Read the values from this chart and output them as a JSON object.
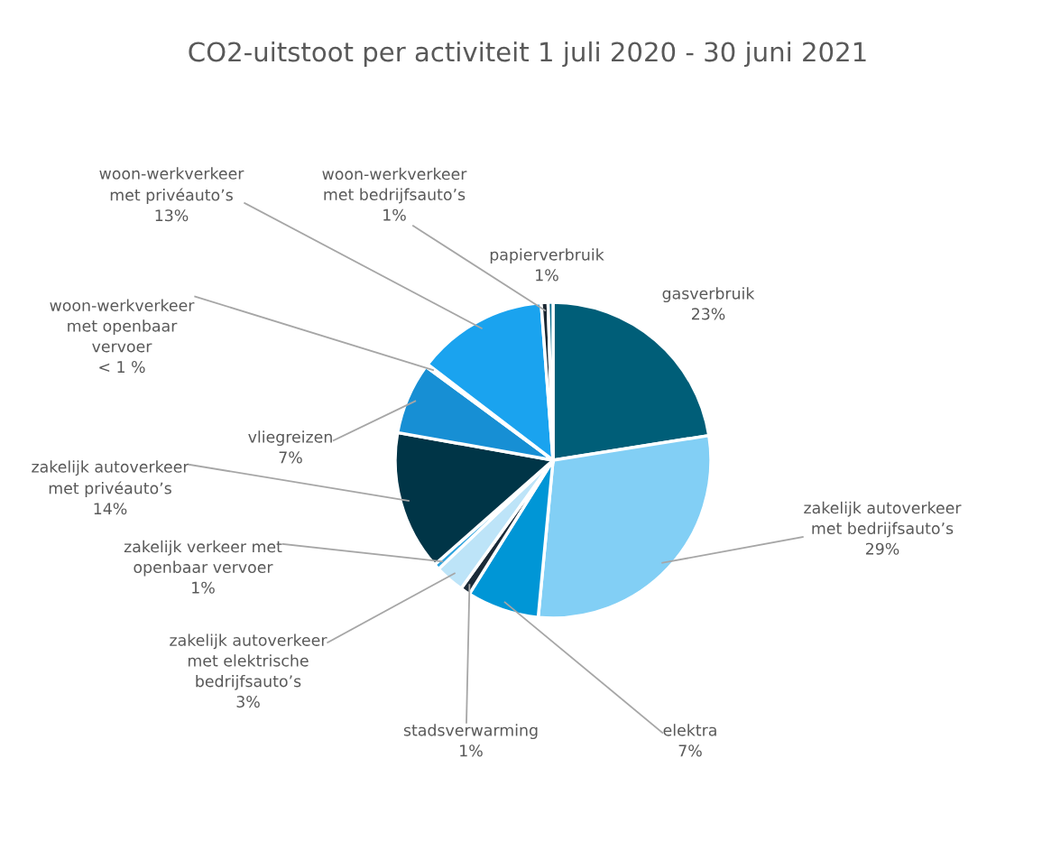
{
  "chart_data": {
    "type": "pie",
    "title": "CO2-uitstoot per activiteit 1 juli 2020 - 30 juni 2021",
    "categories": [
      "gasverbruik",
      "zakelijk autoverkeer met bedrijfsauto’s",
      "elektra",
      "stadsverwarming",
      "zakelijk autoverkeer met elektrische bedrijfsauto’s",
      "zakelijk verkeer met openbaar vervoer",
      "zakelijk autoverkeer met privéauto’s",
      "vliegreizen",
      "woon-werkverkeer met openbaar vervoer",
      "woon-werkverkeer met privéauto’s",
      "woon-werkverkeer met bedrijfsauto’s",
      "papierverbruik"
    ],
    "values": [
      22.5,
      29,
      7.4,
      1,
      3,
      0.6,
      14.3,
      7.3,
      0.3,
      13.4,
      0.7,
      0.5
    ],
    "value_labels": [
      "23%",
      "29%",
      "7%",
      "1%",
      "3%",
      "1%",
      "14%",
      "7%",
      "< 1 %",
      "13%",
      "1%",
      "1%"
    ],
    "colors": [
      "#005e78",
      "#82cff5",
      "#0096d6",
      "#1b2b38",
      "#bde4f8",
      "#2ea3de",
      "#003547",
      "#178fd4",
      "#3b4a55",
      "#1aa3ef",
      "#1b2833",
      "#0b6f90"
    ],
    "legend": false
  }
}
